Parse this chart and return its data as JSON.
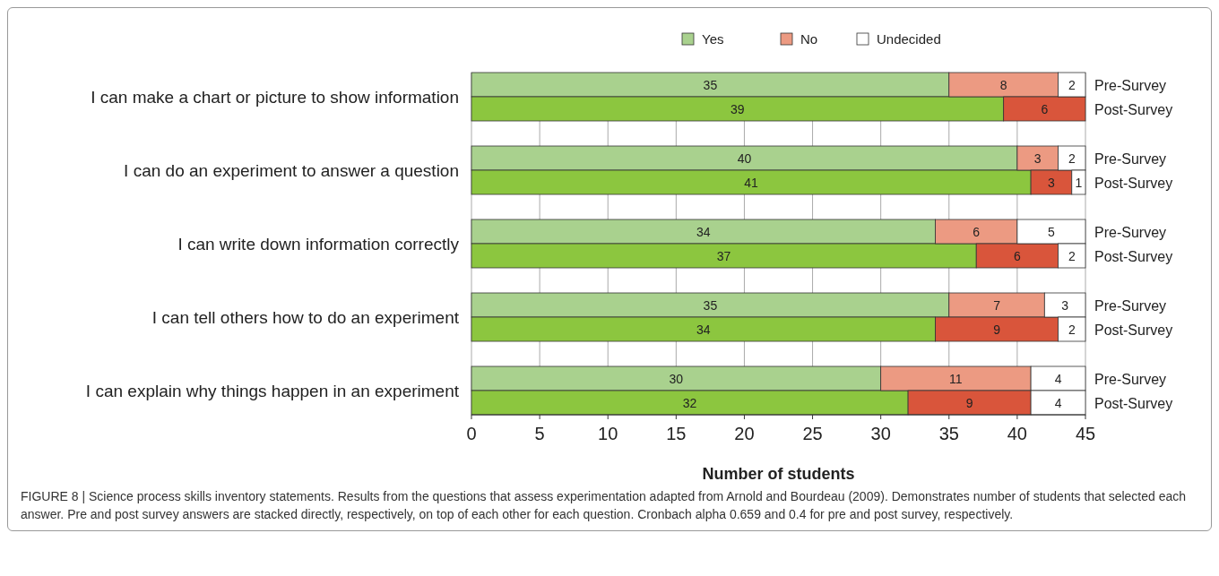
{
  "chart_data": {
    "type": "bar",
    "orientation": "horizontal",
    "stacked": true,
    "categories": [
      "Pre-Survey",
      "Post-Survey",
      "Pre-Survey",
      "Post-Survey",
      "Pre-Survey",
      "Post-Survey",
      "Pre-Survey",
      "Post-Survey",
      "Pre-Survey",
      "Post-Survey"
    ],
    "series": [
      {
        "name": "Yes",
        "color": "#a9d18e",
        "colors": [
          "#a9d18e",
          "#8cc63f",
          "#a9d18e",
          "#8cc63f",
          "#a9d18e",
          "#8cc63f",
          "#a9d18e",
          "#8cc63f",
          "#a9d18e",
          "#8cc63f"
        ],
        "values": [
          35,
          39,
          40,
          41,
          34,
          37,
          35,
          34,
          30,
          32
        ]
      },
      {
        "name": "No",
        "color": "#ec9a82",
        "colors": [
          "#ec9a82",
          "#d9553b",
          "#ec9a82",
          "#d9553b",
          "#ec9a82",
          "#d9553b",
          "#ec9a82",
          "#d9553b",
          "#ec9a82",
          "#d9553b"
        ],
        "values": [
          8,
          6,
          3,
          3,
          6,
          6,
          7,
          9,
          11,
          9
        ]
      },
      {
        "name": "Undecided",
        "color": "#ffffff",
        "colors": [
          "#ffffff",
          "#ffffff",
          "#ffffff",
          "#ffffff",
          "#ffffff",
          "#ffffff",
          "#ffffff",
          "#ffffff",
          "#ffffff",
          "#ffffff"
        ],
        "values": [
          2,
          null,
          2,
          1,
          5,
          2,
          3,
          2,
          4,
          4
        ]
      }
    ],
    "xlim": [
      0,
      45
    ],
    "xticks": [
      0,
      5,
      10,
      15,
      20,
      25,
      30,
      35,
      40,
      45
    ],
    "xlabel": "Number of students",
    "grid": "x",
    "legend": "top",
    "data_labels": true,
    "annotations": [
      "I can make a chart or picture to show information",
      "I can do an experiment to answer a question",
      "I can write down information correctly",
      "I can tell others how to do an experiment",
      "I can explain why things happen in an experiment",
      "FIGURE 8 | Science process skills inventory statements. Results from the questions that assess experimentation adapted from Arnold and Bourdeau (2009). Demonstrates number of students that selected each answer. Pre and post survey answers are stacked directly, respectively, on top of each other for each question. Cronbach alpha 0.659 and 0.4 for pre and post survey, respectively."
    ]
  }
}
